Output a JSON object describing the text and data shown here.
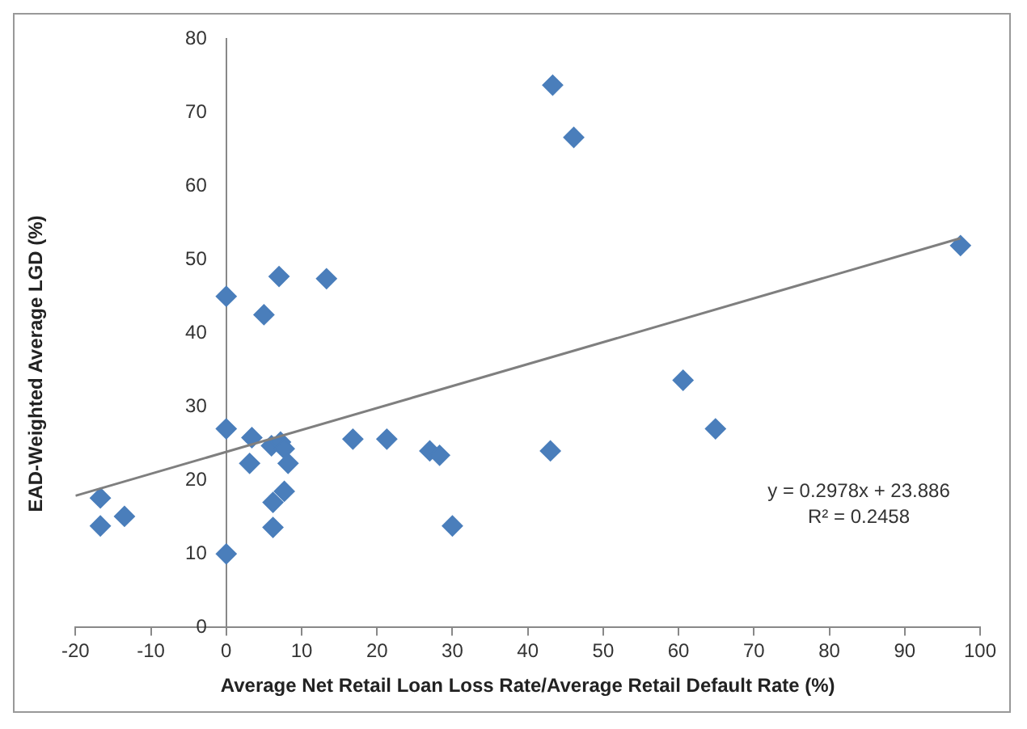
{
  "chart_data": {
    "type": "scatter",
    "xlabel": "Average Net Retail Loan Loss Rate/Average Retail Default Rate (%)",
    "ylabel": "EAD-Weighted Average LGD (%)",
    "xlim": [
      -20,
      100
    ],
    "xticks": [
      -20,
      -10,
      0,
      10,
      20,
      30,
      40,
      50,
      60,
      70,
      80,
      90,
      100
    ],
    "ylim": [
      0,
      80
    ],
    "yticks": [
      0,
      10,
      20,
      30,
      40,
      50,
      60,
      70,
      80
    ],
    "grid": false,
    "legend": false,
    "marker": "diamond",
    "series": [
      {
        "type": "scatter",
        "color": "#4a7ebb",
        "x": [
          -16.7,
          -16.7,
          -13.5,
          0,
          0,
          0,
          3.4,
          3.1,
          5,
          7,
          13.3,
          6,
          7.2,
          7.7,
          8.2,
          7.7,
          6.2,
          6.2,
          16.8,
          21.3,
          27,
          28.3,
          30,
          43.3,
          46.1,
          43,
          60.6,
          64.9,
          97.4
        ],
        "values": [
          17.6,
          13.8,
          15.1,
          45,
          27,
          10,
          25.8,
          22.3,
          42.5,
          47.7,
          47.4,
          24.7,
          25.2,
          24.3,
          22.3,
          18.5,
          17,
          13.6,
          25.6,
          25.6,
          24,
          23.4,
          13.8,
          73.7,
          66.6,
          24,
          33.6,
          27,
          51.9
        ]
      },
      {
        "type": "line",
        "color": "#7f7f7f",
        "marker": "none",
        "line_style": "solid",
        "x": [
          -20,
          97.4
        ],
        "values": [
          17.9,
          52.9
        ]
      }
    ],
    "annotations": [
      "y = 0.2978x + 23.886",
      "R² = 0.2458"
    ]
  }
}
